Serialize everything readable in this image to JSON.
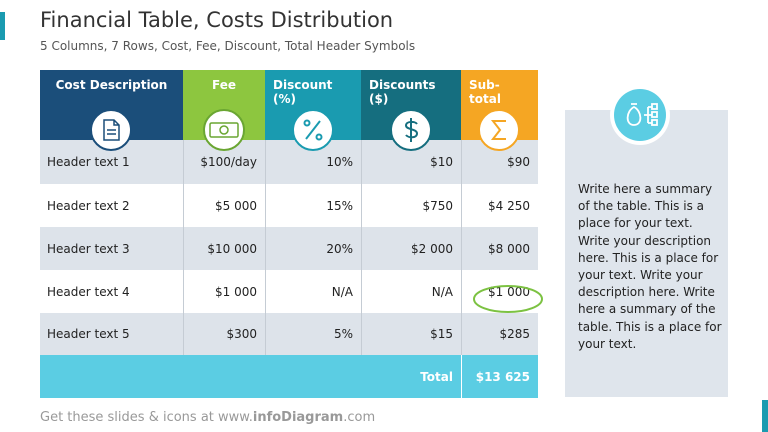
{
  "header": {
    "title": "Financial Table, Costs Distribution",
    "subtitle": "5 Columns, 7 Rows, Cost, Fee, Discount, Total Header Symbols"
  },
  "table": {
    "columns": [
      "Cost Description",
      "Fee",
      "Discount (%)",
      "Discounts ($)",
      "Sub-total"
    ],
    "rows": [
      [
        "Header text 1",
        "$100/day",
        "10%",
        "$10",
        "$90"
      ],
      [
        "Header text 2",
        "$5 000",
        "15%",
        "$750",
        "$4 250"
      ],
      [
        "Header text 3",
        "$10 000",
        "20%",
        "$2 000",
        "$8 000"
      ],
      [
        "Header text 4",
        "$1 000",
        "N/A",
        "N/A",
        "$1 000"
      ],
      [
        "Header text 5",
        "$300",
        "5%",
        "$15",
        "$285"
      ]
    ],
    "total_label": "Total",
    "total_value": "$13 625"
  },
  "side": {
    "text": "Write here a summary of the table. This is a place for your text. Write your description here. This is a place for your text. Write your description here. Write here a summary of the table. This is a place for your text."
  },
  "footer": {
    "prefix": "Get these slides & icons at www.",
    "brand": "infoDiagram",
    "suffix": ".com"
  }
}
